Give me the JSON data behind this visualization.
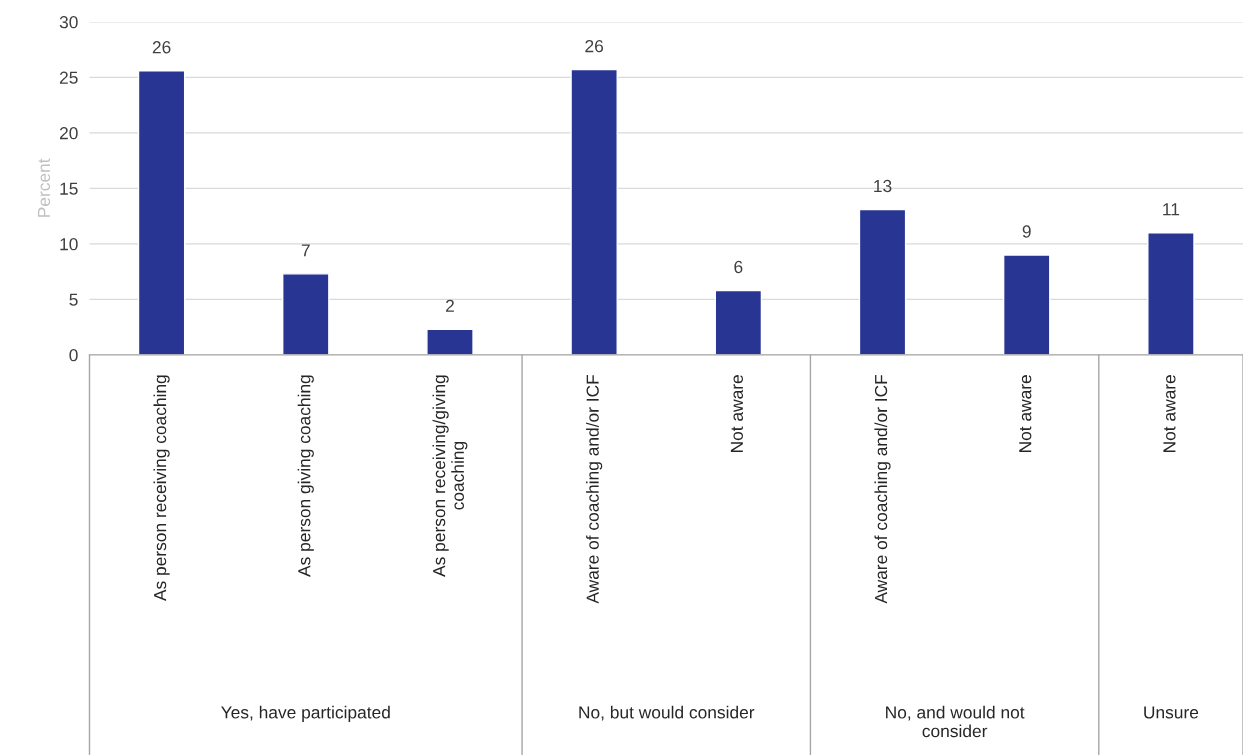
{
  "chart_data": {
    "type": "bar",
    "ylabel": "Percent",
    "categories": [
      "As person receiving coaching",
      "As person giving coaching",
      "As person receiving/giving\ncoaching",
      "Aware of coaching and/or ICF",
      "Not aware",
      "Aware of coaching and/or ICF",
      "Not aware",
      "Not aware"
    ],
    "values": [
      25.6,
      7.3,
      2.3,
      25.7,
      5.8,
      13.1,
      9.0,
      11.0
    ],
    "value_labels": [
      "26",
      "7",
      "2",
      "26",
      "6",
      "13",
      "9",
      "11"
    ],
    "color": "#283593",
    "ylim": [
      0,
      30
    ],
    "yticks": [
      0,
      5,
      10,
      15,
      20,
      25,
      30
    ],
    "grid": "y",
    "annotations": [
      "Yes, have participated",
      "No, but would consider",
      "No, and would not\nconsider",
      "Unsure"
    ]
  }
}
